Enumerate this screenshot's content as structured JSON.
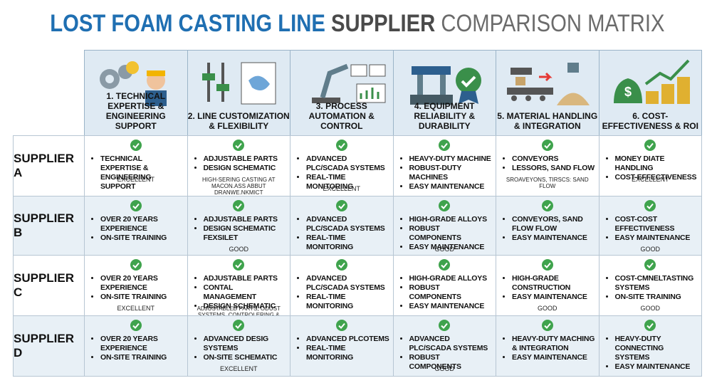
{
  "header": {
    "title_part1": "LOST FOAM CASTING LINE",
    "title_part2": "SUPPLIER",
    "title_part3": "COMPARISON MATRIX"
  },
  "table": {
    "columns": [
      "1. TECHNICAL EXPERTISE & ENGINEERING SUPPORT",
      "2. LINE CUSTOMIZATION & FLEXIBILITY",
      "3. PROCESS AUTOMATION & CONTROL",
      "4. EQUIPMENT RELIABILITY & DURABILITY",
      "5. MATERIAL HANDLING & INTEGRATION",
      "6. COST-EFFECTIVENESS & ROI"
    ],
    "rows": [
      {
        "supplier": "SUPPLIER A",
        "cells": [
          {
            "bullets": [
              "TECHNICAL EXPERTISE & ENGINEERING SUPPORT"
            ],
            "note": "EXCELLENT"
          },
          {
            "bullets": [
              "ADJUSTABLE PARTS",
              "DESIGN SCHEMATIC"
            ],
            "note": "HIGH-SERING CASTING AT MACON.ASS ABBUT DRANWE.NKMICT IYOHTWESTHONIAL"
          },
          {
            "bullets": [
              "ADVANCED PLC/SCADA SYSTEMS",
              "REAL-TIME MONITORING"
            ],
            "note": "EXCELLENT"
          },
          {
            "bullets": [
              "HEAVY-DUTY MACHINE",
              "ROBUST-DUTY MACHINES",
              "EASY MAINTENANCE"
            ]
          },
          {
            "bullets": [
              "CONVEYORS",
              "LESSORS, SAND FLOW"
            ],
            "note": "SROAVEYONS, TIRSCS: SAND FLOW"
          },
          {
            "bullets": [
              "MONEY DIATE HANDLING",
              "COST-EFFECTIVENESS"
            ],
            "note": "EXCELLENT"
          }
        ]
      },
      {
        "supplier": "SUPPLIER B",
        "cells": [
          {
            "bullets": [
              "OVER 20 YEARS EXPERIENCE",
              "ON-SITE TRAINING"
            ]
          },
          {
            "bullets": [
              "ADJUSTABLE PARTS",
              "DESIGN SCHEMATIC FEXSILET"
            ],
            "note": "GOOD"
          },
          {
            "bullets": [
              "ADVANCED PLC/SCADA SYSTEMS",
              "REAL-TIME MONITORING"
            ]
          },
          {
            "bullets": [
              "HIGH-GRADE ALLOYS",
              "ROBUST COMPONENTS",
              "EASY MAINTENANCE"
            ],
            "note": "GOOD"
          },
          {
            "bullets": [
              "CONVEYORS, SAND FLOW FLOW",
              "EASY MAINTENANCE"
            ]
          },
          {
            "bullets": [
              "COST-COST EFFECTIVENESS",
              "EASY MAINTENANCE"
            ],
            "note": "GOOD"
          }
        ]
      },
      {
        "supplier": "SUPPLIER C",
        "cells": [
          {
            "bullets": [
              "OVER 20 YEARS EXPERIENCE",
              "ON-SITE TRAINING"
            ],
            "note": "EXCELLENT"
          },
          {
            "bullets": [
              "ADJUSTABLE PARTS",
              "CONTAL MANAGEMENT",
              "DESIGN SCHEMATIC"
            ],
            "note": "ADJUSTABLED PARTS, ODUST SYSTEMS, CONTROLERING & INSIANSTMENT"
          },
          {
            "bullets": [
              "ADVANCED PLC/SCADA SYSTEMS",
              "REAL-TIME MONITORING"
            ]
          },
          {
            "bullets": [
              "HIGH-GRADE ALLOYS",
              "ROBUST COMPONENTS",
              "EASY MAINTENANCE"
            ]
          },
          {
            "bullets": [
              "HIGH-GRADE CONSTRUCTION",
              "EASY MAINTENANCE"
            ],
            "note": "GOOD"
          },
          {
            "bullets": [
              "COST-CMNELTASTING SYSTEMS",
              "ON-SITE TRAINING"
            ],
            "note": "GOOD"
          }
        ]
      },
      {
        "supplier": "SUPPLIER D",
        "cells": [
          {
            "bullets": [
              "OVER 20 YEARS EXPERIENCE",
              "ON-SITE TRAINING"
            ]
          },
          {
            "bullets": [
              "ADVANCED DESIG SYSTEMS",
              "ON-SITE SCHEMATIC"
            ],
            "note": "EXCELLENT"
          },
          {
            "bullets": [
              "ADVANCED PLCOTEMS",
              "REAL-TIME MONITORING"
            ]
          },
          {
            "bullets": [
              "ADVANCED PLC/SCADA SYSTEMS",
              "ROBUST COMPONENTS"
            ],
            "note": "GOOD"
          },
          {
            "bullets": [
              "HEAVY-DUTY MACHING & INTEGRATION",
              "EASY MAINTENANCE"
            ]
          },
          {
            "bullets": [
              "HEAVY-DUTY CONNECTING SYSTEMS",
              "EASY MAINTENANCE"
            ]
          }
        ]
      }
    ]
  }
}
